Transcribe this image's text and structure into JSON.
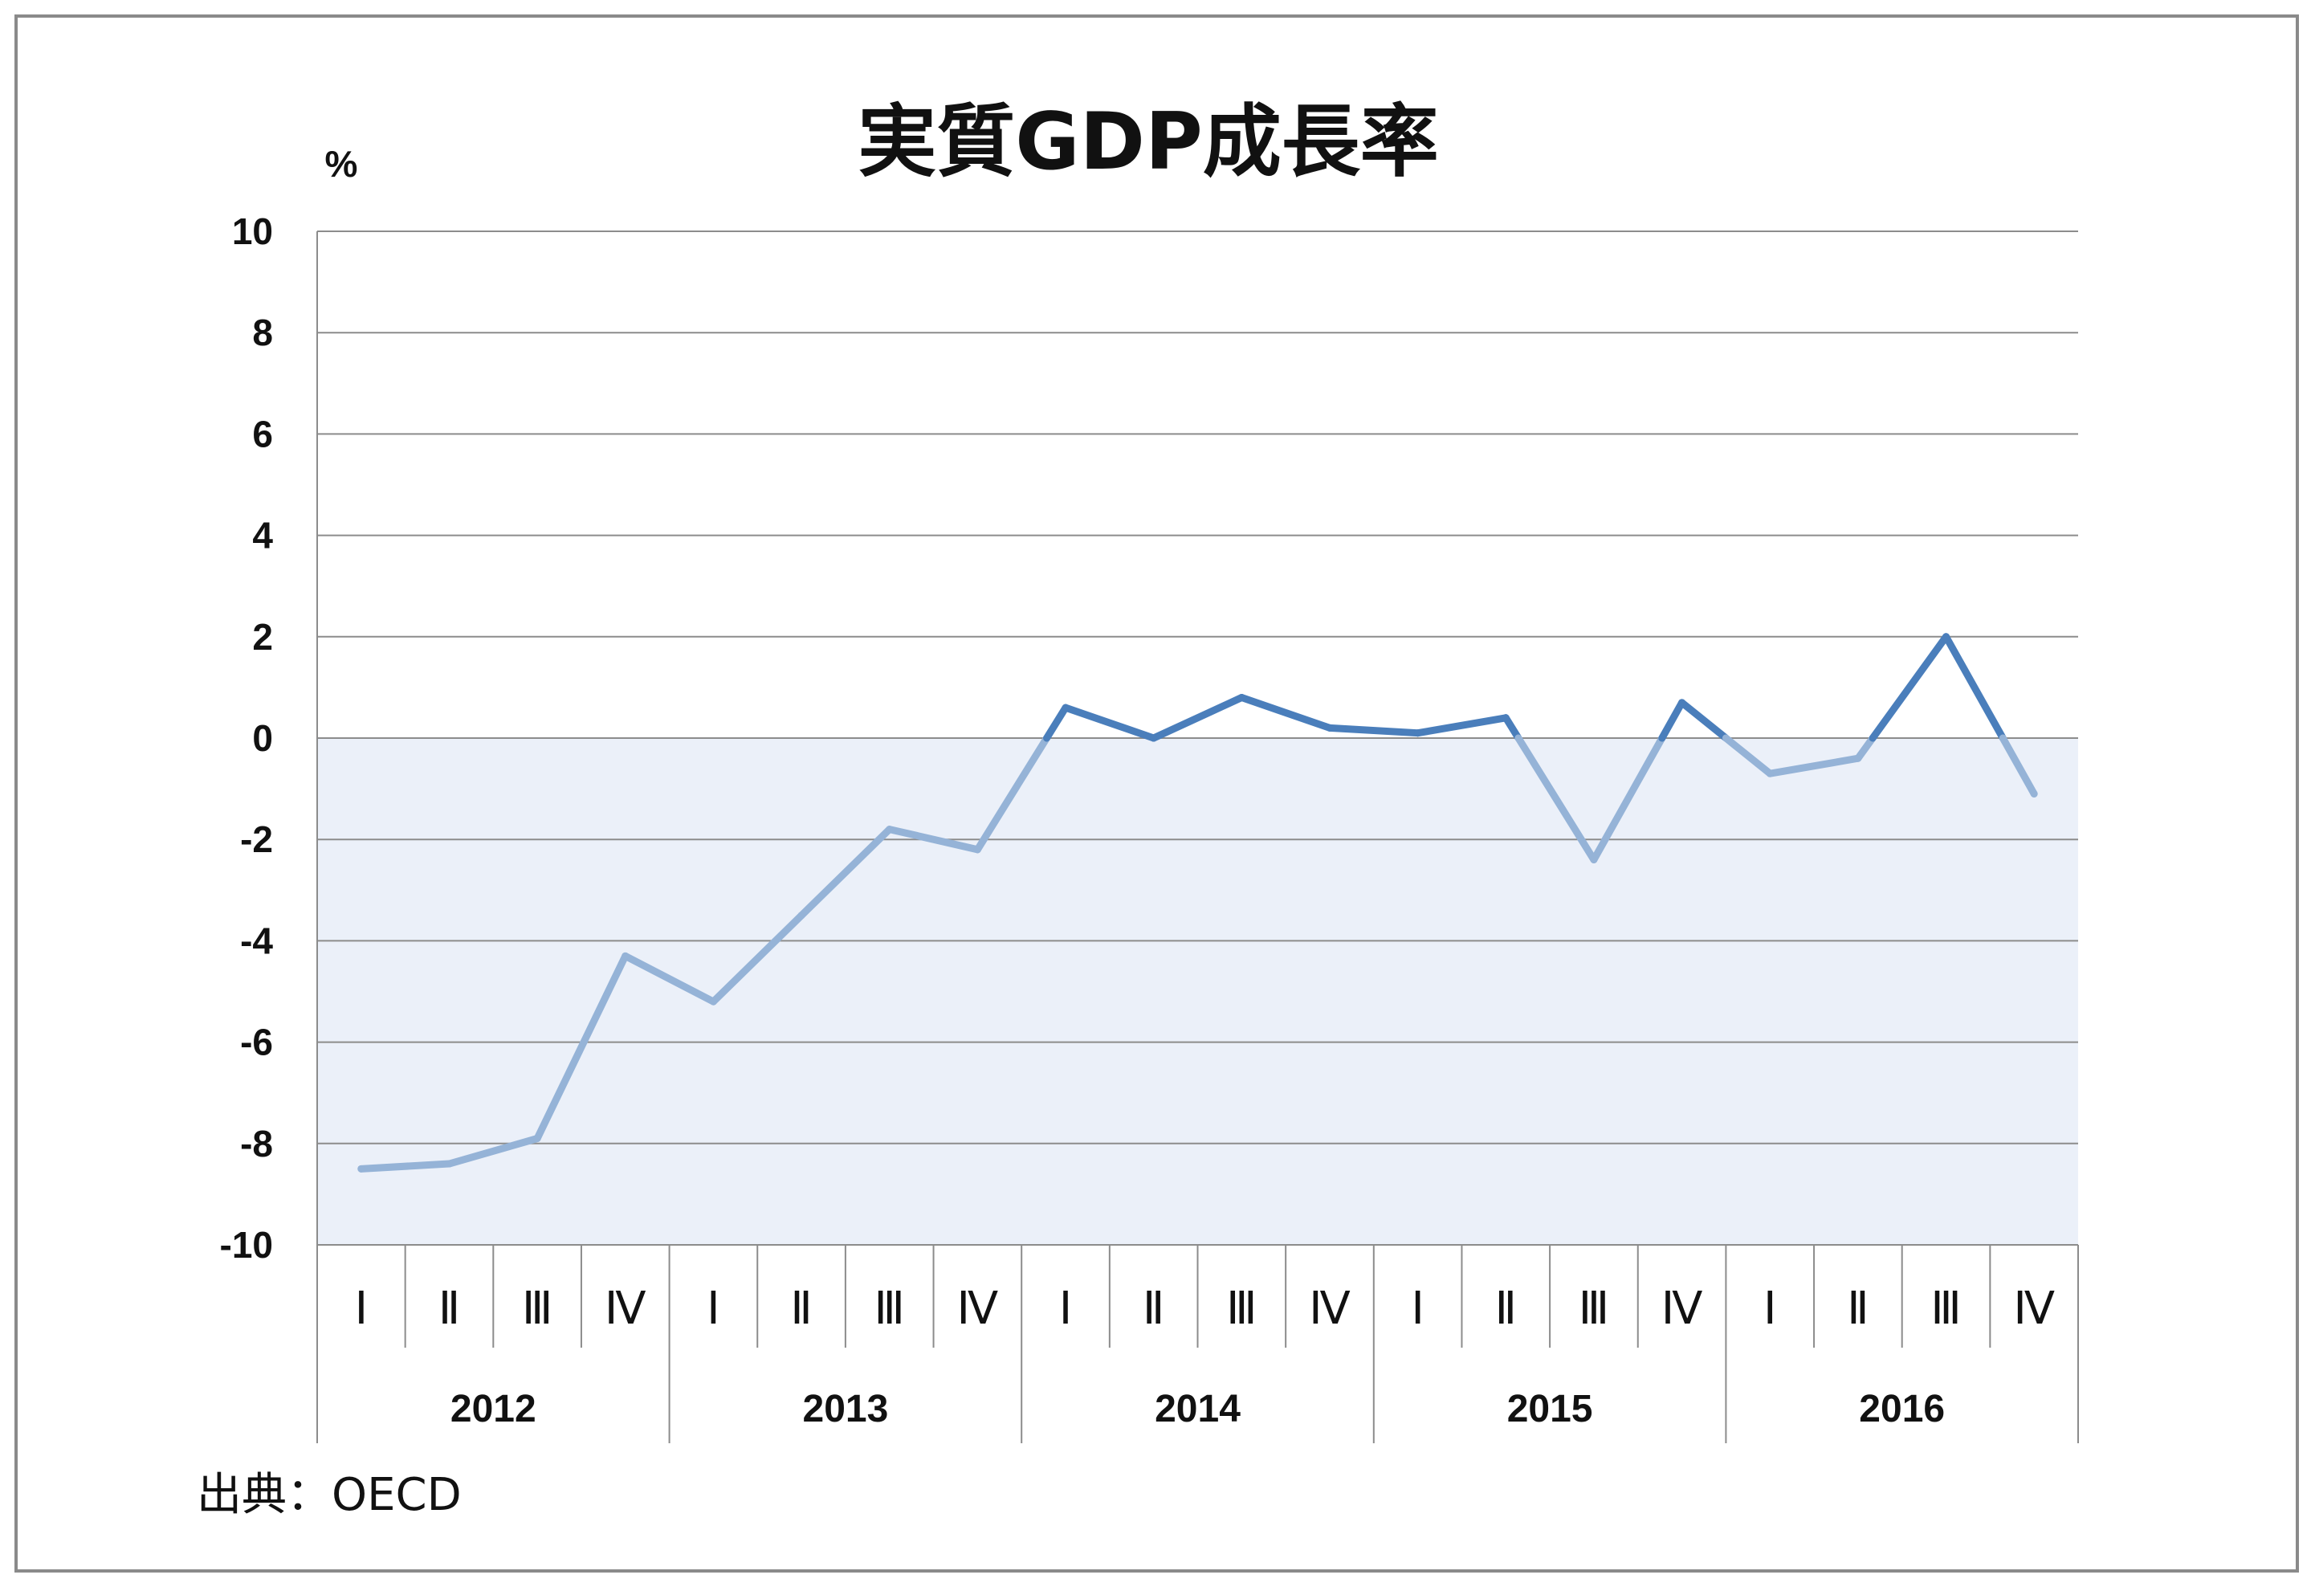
{
  "chart_data": {
    "type": "line",
    "title": "実質GDP成長率",
    "ylabel": "%",
    "ylim": [
      -10,
      10
    ],
    "yticks": [
      10,
      8,
      6,
      4,
      2,
      0,
      -2,
      -4,
      -6,
      -8,
      -10
    ],
    "ytick_labels": [
      "10",
      "8",
      "6",
      "4",
      "2",
      "0",
      "-2",
      "-4",
      "-6",
      "-8",
      "-10"
    ],
    "quarter_labels": [
      "Ⅰ",
      "Ⅱ",
      "Ⅲ",
      "Ⅳ"
    ],
    "years": [
      "2012",
      "2013",
      "2014",
      "2015",
      "2016"
    ],
    "values": [
      -8.5,
      -8.4,
      -7.9,
      -4.3,
      -5.2,
      -3.5,
      -1.8,
      -2.2,
      0.6,
      0.0,
      0.8,
      0.2,
      0.1,
      0.4,
      -2.4,
      0.7,
      -0.7,
      -0.4,
      2.0,
      -1.1
    ],
    "grid": true,
    "negative_region_shaded": true,
    "source": "出典：OECD"
  },
  "colors": {
    "positive_line": "#4a7ebb",
    "negative_line": "#95b3d7",
    "negative_fill": "#ebf0f9",
    "grid": "#8c8c8c",
    "frame": "#8a8a8a"
  }
}
